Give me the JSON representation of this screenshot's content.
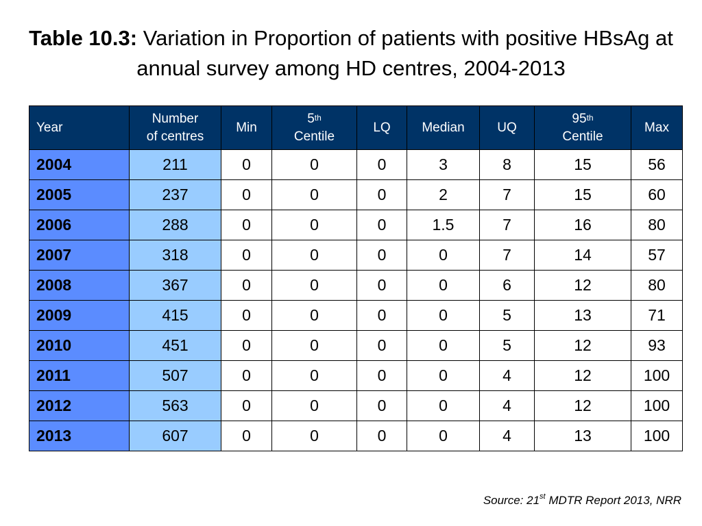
{
  "title": {
    "bold": "Table 10.3:",
    "text": "Variation in Proportion of patients with positive HBsAg at annual survey among HD centres, 2004-2013"
  },
  "table": {
    "headers": {
      "year": "Year",
      "centres_line1": "Number",
      "centres_line2": "of centres",
      "min": "Min",
      "p5_num": "5",
      "p5_sup": "th",
      "p5_word": "Centile",
      "lq": "LQ",
      "median": "Median",
      "uq": "UQ",
      "p95_num": "95",
      "p95_sup": "th",
      "p95_word": "Centile",
      "max": "Max"
    },
    "rows": [
      {
        "year": "2004",
        "centres": "211",
        "min": "0",
        "p5": "0",
        "lq": "0",
        "median": "3",
        "uq": "8",
        "p95": "15",
        "max": "56"
      },
      {
        "year": "2005",
        "centres": "237",
        "min": "0",
        "p5": "0",
        "lq": "0",
        "median": "2",
        "uq": "7",
        "p95": "15",
        "max": "60"
      },
      {
        "year": "2006",
        "centres": "288",
        "min": "0",
        "p5": "0",
        "lq": "0",
        "median": "1.5",
        "uq": "7",
        "p95": "16",
        "max": "80"
      },
      {
        "year": "2007",
        "centres": "318",
        "min": "0",
        "p5": "0",
        "lq": "0",
        "median": "0",
        "uq": "7",
        "p95": "14",
        "max": "57"
      },
      {
        "year": "2008",
        "centres": "367",
        "min": "0",
        "p5": "0",
        "lq": "0",
        "median": "0",
        "uq": "6",
        "p95": "12",
        "max": "80"
      },
      {
        "year": "2009",
        "centres": "415",
        "min": "0",
        "p5": "0",
        "lq": "0",
        "median": "0",
        "uq": "5",
        "p95": "13",
        "max": "71"
      },
      {
        "year": "2010",
        "centres": "451",
        "min": "0",
        "p5": "0",
        "lq": "0",
        "median": "0",
        "uq": "5",
        "p95": "12",
        "max": "93"
      },
      {
        "year": "2011",
        "centres": "507",
        "min": "0",
        "p5": "0",
        "lq": "0",
        "median": "0",
        "uq": "4",
        "p95": "12",
        "max": "100"
      },
      {
        "year": "2012",
        "centres": "563",
        "min": "0",
        "p5": "0",
        "lq": "0",
        "median": "0",
        "uq": "4",
        "p95": "12",
        "max": "100"
      },
      {
        "year": "2013",
        "centres": "607",
        "min": "0",
        "p5": "0",
        "lq": "0",
        "median": "0",
        "uq": "4",
        "p95": "13",
        "max": "100"
      }
    ]
  },
  "source": {
    "prefix": "Source: 21",
    "sup": "st",
    "suffix": " MDTR Report 2013, NRR"
  },
  "colors": {
    "header_bg": "#003366",
    "year_col_bg": "#5b8cff",
    "centres_col_bg": "#99ccff"
  }
}
